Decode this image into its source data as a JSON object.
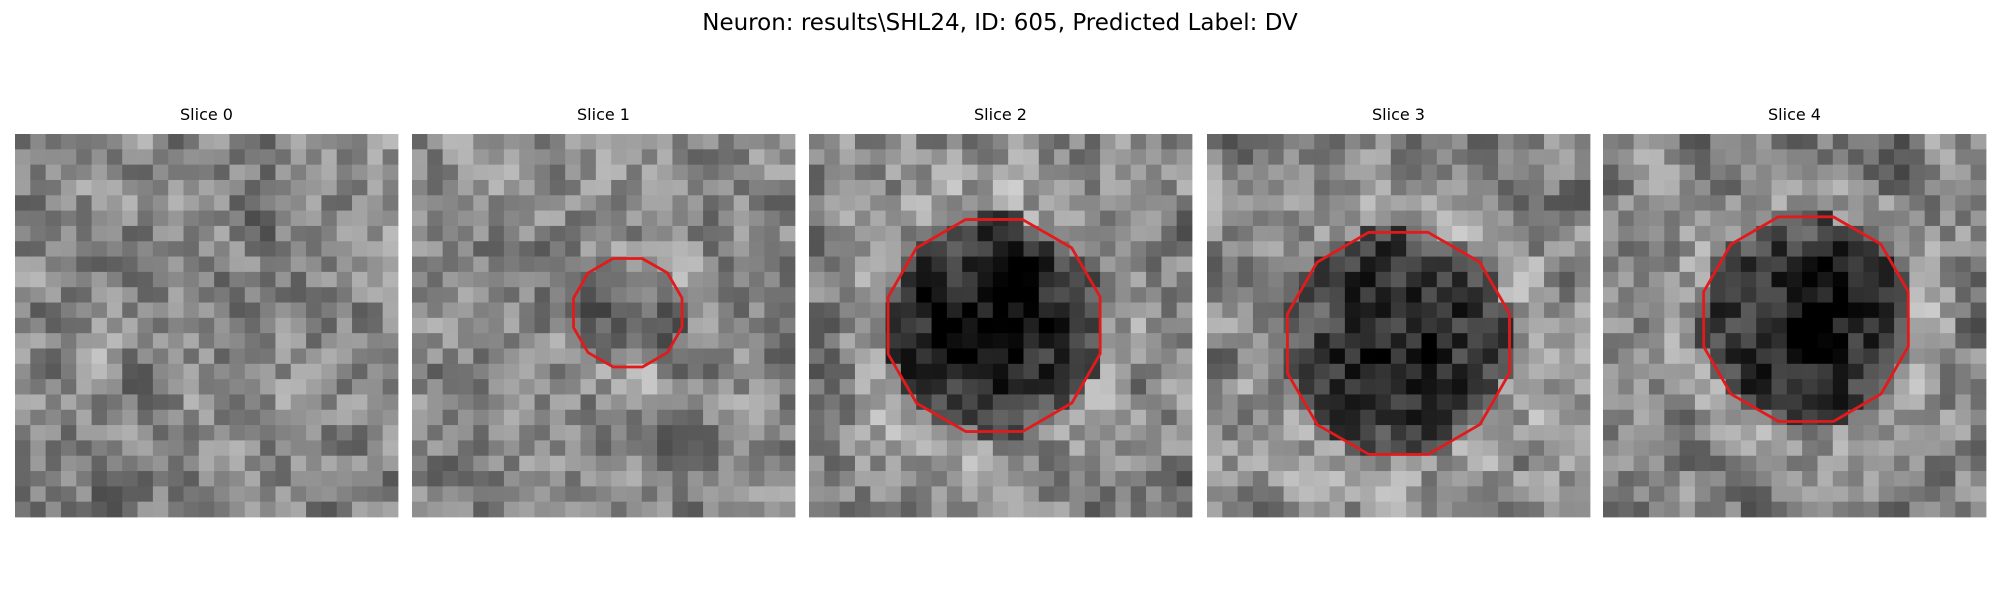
{
  "title": "Neuron: results\\SHL24, ID: 605, Predicted Label: DV",
  "panels": [
    {
      "title": "Slice 0"
    },
    {
      "title": "Slice 1"
    },
    {
      "title": "Slice 2"
    },
    {
      "title": "Slice 3"
    },
    {
      "title": "Slice 4"
    }
  ]
}
